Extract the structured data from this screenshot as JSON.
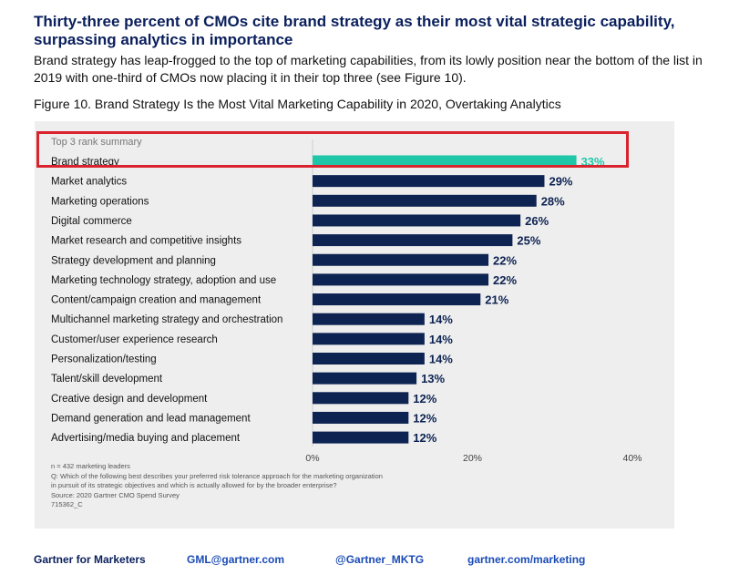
{
  "header": {
    "headline": "Thirty-three percent of CMOs cite brand strategy as their most vital strategic capability, surpassing analytics in importance",
    "intro": "Brand strategy has leap-frogged to the top of marketing capabilities, from its lowly position near the bottom of the list in 2019 with one-third of CMOs now placing it in their top three (see Figure 10).",
    "figure_title": "Figure 10. Brand Strategy Is the Most Vital Marketing Capability in 2020, Overtaking Analytics"
  },
  "chart_data": {
    "type": "bar",
    "orientation": "horizontal",
    "title": "Top 3 rank summary",
    "categories": [
      "Brand strategy",
      "Market analytics",
      "Marketing operations",
      "Digital commerce",
      "Market research and competitive insights",
      "Strategy development and planning",
      "Marketing technology strategy, adoption and use",
      "Content/campaign creation and management",
      "Multichannel marketing strategy and orchestration",
      "Customer/user experience research",
      "Personalization/testing",
      "Talent/skill development",
      "Creative design and development",
      "Demand generation and lead management",
      "Advertising/media buying and placement"
    ],
    "values": [
      33,
      29,
      28,
      26,
      25,
      22,
      22,
      21,
      14,
      14,
      14,
      13,
      12,
      12,
      12
    ],
    "value_labels": [
      "33%",
      "29%",
      "28%",
      "26%",
      "25%",
      "22%",
      "22%",
      "21%",
      "14%",
      "14%",
      "14%",
      "13%",
      "12%",
      "12%",
      "12%"
    ],
    "xlim": [
      0,
      40
    ],
    "x_ticks": [
      0,
      20,
      40
    ],
    "x_tick_labels": [
      "0%",
      "20%",
      "40%"
    ],
    "highlight_index": 0,
    "colors": {
      "highlight": "#1fc7a8",
      "bar": "#0d2352",
      "highlight_box": "#d9232e",
      "panel": "#eeeeee"
    },
    "grid": false,
    "legend": "none"
  },
  "notes": {
    "sample": "n = 432 marketing leaders",
    "question_line1": "Q: Which of the following best describes your preferred risk tolerance approach for the marketing organization",
    "question_line2": "in pursuit of its strategic objectives and which is actually allowed for by the broader enterprise?",
    "source": "Source: 2020 Gartner CMO Spend Survey",
    "id": "715362_C"
  },
  "footer": {
    "brand": "Gartner for Marketers",
    "email": "GML@gartner.com",
    "twitter": "@Gartner_MKTG",
    "website": "gartner.com/marketing"
  }
}
